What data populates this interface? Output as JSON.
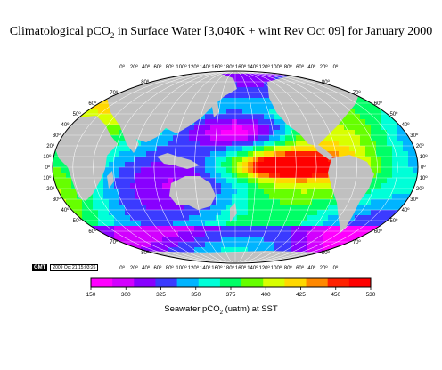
{
  "title": {
    "prefix": "Climatological pCO",
    "sub": "2",
    "suffix": " in Surface Water [3,040K + wint Rev Oct 09] for January 2000"
  },
  "map": {
    "projection": "Winkel-tripel / elliptical world",
    "land_color": "#c0c0c0",
    "lon_labels": [
      "0º",
      "20º",
      "40º",
      "60º",
      "80º",
      "100º",
      "120º",
      "140º",
      "160º",
      "180º",
      "160º",
      "140º",
      "120º",
      "100º",
      "80º",
      "60º",
      "40º",
      "20º",
      "0º"
    ],
    "lat_labels_north": [
      "80º",
      "70º",
      "60º",
      "50º",
      "40º",
      "30º",
      "20º",
      "10º",
      "0º"
    ],
    "lat_labels_south": [
      "10º",
      "20º",
      "30º",
      "40º",
      "50º",
      "60º",
      "70º",
      "80º"
    ]
  },
  "stamp": {
    "logo": "GMT",
    "text": "2009 Oct 21 15:03:26"
  },
  "colorbar": {
    "ticks": [
      "150",
      "300",
      "325",
      "350",
      "375",
      "400",
      "425",
      "450",
      "530"
    ],
    "colors": [
      "#ff00ff",
      "#d200ff",
      "#8800ff",
      "#3b3bff",
      "#00b4ff",
      "#00ffd8",
      "#00ff66",
      "#66ff00",
      "#d8ff00",
      "#ffd800",
      "#ff8800",
      "#ff2200",
      "#ff0000"
    ],
    "label_prefix": "Seawater  pCO",
    "label_sub": "2",
    "label_suffix": " (uatm) at SST"
  }
}
